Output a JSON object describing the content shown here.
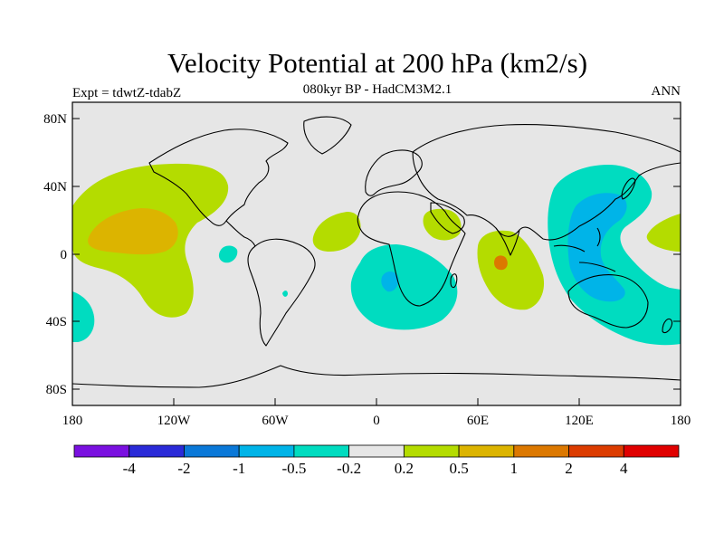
{
  "title": "Velocity Potential at 200 hPa (km2/s)",
  "subtitle": "080kyr BP - HadCM3M2.1",
  "experiment": "Expt = tdwtZ-tdabZ",
  "season": "ANN",
  "map": {
    "lat_ticks": [
      "80N",
      "40N",
      "0",
      "40S",
      "80S"
    ],
    "lon_ticks": [
      "180",
      "120W",
      "60W",
      "0",
      "60E",
      "120E",
      "180"
    ]
  },
  "colorbar": {
    "colors": [
      "#7a10e0",
      "#2a2ad8",
      "#0a78d8",
      "#00b4e8",
      "#00dcc0",
      "#e6e6e6",
      "#b4dc00",
      "#dcb400",
      "#dc7800",
      "#dc3c00",
      "#e00000"
    ],
    "labels": [
      "-4",
      "-2",
      "-1",
      "-0.5",
      "-0.2",
      "0.2",
      "0.5",
      "1",
      "2",
      "4"
    ]
  },
  "colors": {
    "background": "#e6e6e6",
    "pos_02": "#b4dc00",
    "pos_05": "#dcb400",
    "pos_1": "#dc7800",
    "neg_02": "#00dcc0",
    "neg_05": "#00b4e8"
  }
}
